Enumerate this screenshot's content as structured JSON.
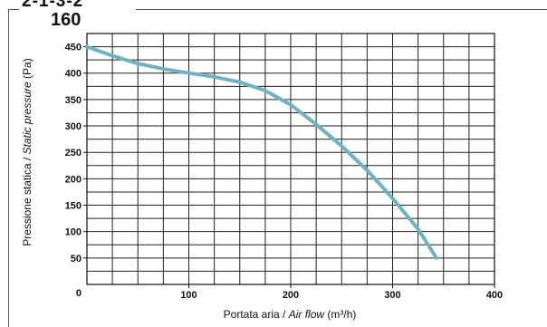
{
  "header": {
    "partial_text": "2-1-3-2",
    "model": "160"
  },
  "chart_data": {
    "type": "line",
    "title": "160",
    "xlabel_plain": "Portata aria / ",
    "xlabel_italic": "Air flow",
    "xlabel_unit": " (m³/h)",
    "ylabel_plain": "Pressione statica / ",
    "ylabel_italic": "Static pressure",
    "ylabel_unit": " (Pa)",
    "xlim": [
      0,
      400
    ],
    "ylim": [
      0,
      475
    ],
    "x_ticks": [
      "100",
      "200",
      "300",
      "400"
    ],
    "x_tick_values": [
      100,
      200,
      300,
      400
    ],
    "y_ticks": [
      "450",
      "400",
      "350",
      "300",
      "250",
      "200",
      "150",
      "100",
      "50",
      "0"
    ],
    "y_tick_values": [
      450,
      400,
      350,
      300,
      250,
      200,
      150,
      100,
      50,
      0
    ],
    "grid": true,
    "series": [
      {
        "color": "#6fb2c1",
        "x": [
          0,
          25,
          50,
          75,
          100,
          125,
          150,
          175,
          200,
          225,
          250,
          275,
          300,
          325,
          343
        ],
        "y": [
          450,
          433,
          418,
          408,
          400,
          393,
          383,
          367,
          340,
          303,
          262,
          216,
          163,
          105,
          50
        ]
      }
    ]
  }
}
